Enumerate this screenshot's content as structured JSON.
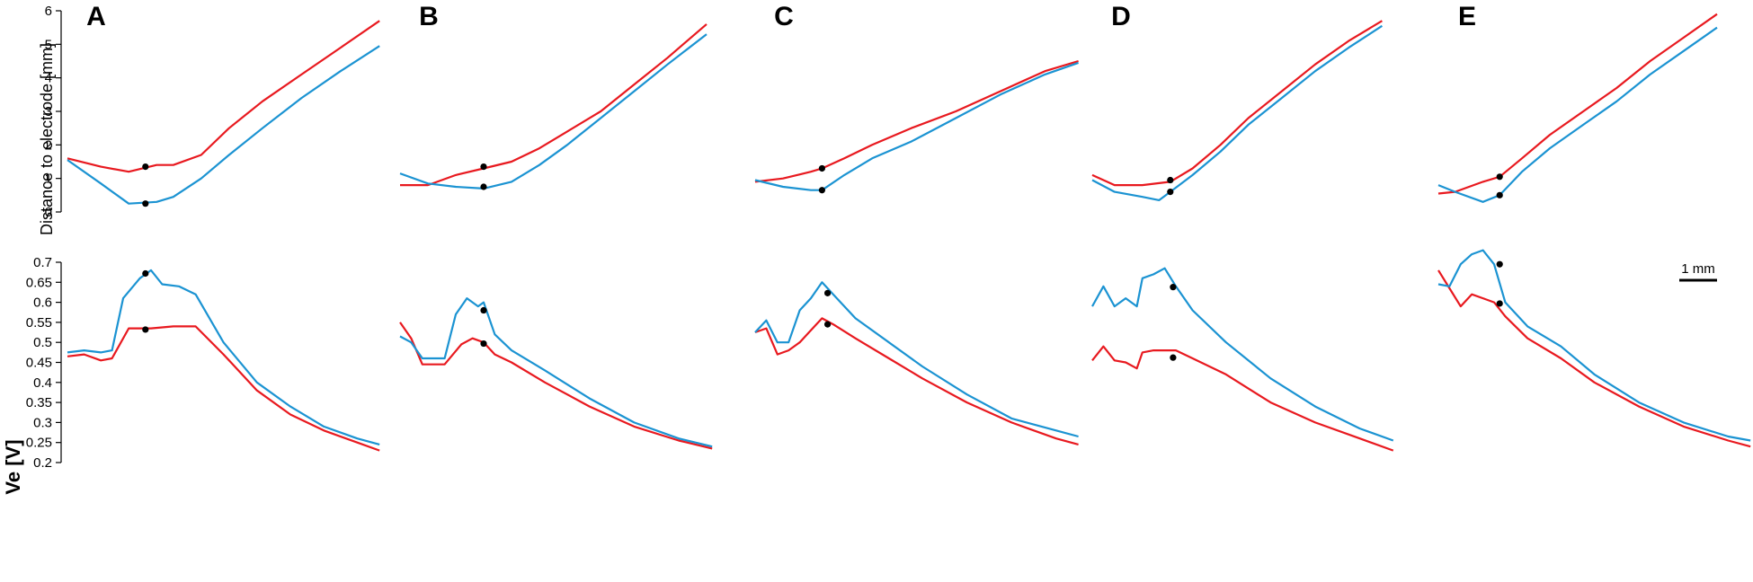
{
  "colors": {
    "red": "#e8191f",
    "blue": "#1b93d2",
    "marker": "#000000",
    "axis": "#000000"
  },
  "scale_bar_label": "1 mm",
  "chart_data": [
    {
      "type": "line",
      "subplot": "top",
      "ylabel": "Distance to electrode [mm]",
      "ylim": [
        0,
        6
      ],
      "yticks": [
        "0",
        "1",
        "2",
        "3",
        "4",
        "5",
        "6"
      ],
      "xlabel": "",
      "x_unit": "mm",
      "panels": [
        {
          "label": "A",
          "series": [
            {
              "color": "red",
              "x": [
                0,
                0.6,
                1.1,
                1.6,
                1.9,
                2.4,
                2.9,
                3.5,
                4.2,
                4.9,
                5.6
              ],
              "values": [
                1.6,
                1.35,
                1.2,
                1.4,
                1.4,
                1.7,
                2.5,
                3.3,
                4.1,
                4.9,
                5.7
              ]
            },
            {
              "color": "blue",
              "x": [
                0,
                0.6,
                1.1,
                1.6,
                1.9,
                2.4,
                2.9,
                3.5,
                4.2,
                4.9,
                5.6
              ],
              "values": [
                1.55,
                0.85,
                0.25,
                0.3,
                0.45,
                1.0,
                1.7,
                2.5,
                3.4,
                4.2,
                4.95
              ]
            }
          ],
          "markers": [
            {
              "x": 1.4,
              "y": 1.35
            },
            {
              "x": 1.4,
              "y": 0.25
            }
          ]
        },
        {
          "label": "B",
          "series": [
            {
              "color": "red",
              "x": [
                0,
                0.5,
                1.0,
                1.5,
                2.0,
                2.5,
                3.0,
                3.6,
                4.2,
                4.8,
                5.5
              ],
              "values": [
                0.8,
                0.8,
                1.1,
                1.3,
                1.5,
                1.9,
                2.4,
                3.0,
                3.8,
                4.6,
                5.6
              ]
            },
            {
              "color": "blue",
              "x": [
                0,
                0.5,
                1.0,
                1.5,
                2.0,
                2.5,
                3.0,
                3.6,
                4.2,
                4.8,
                5.5
              ],
              "values": [
                1.15,
                0.85,
                0.75,
                0.7,
                0.9,
                1.4,
                2.0,
                2.8,
                3.6,
                4.4,
                5.3
              ]
            }
          ],
          "markers": [
            {
              "x": 1.5,
              "y": 1.35
            },
            {
              "x": 1.5,
              "y": 0.75
            }
          ]
        },
        {
          "label": "C",
          "series": [
            {
              "color": "red",
              "x": [
                0,
                0.5,
                1.0,
                1.2,
                1.6,
                2.1,
                2.8,
                3.6,
                4.4,
                5.2,
                5.8
              ],
              "values": [
                0.9,
                1.0,
                1.2,
                1.3,
                1.6,
                2.0,
                2.5,
                3.0,
                3.6,
                4.2,
                4.5
              ]
            },
            {
              "color": "blue",
              "x": [
                0,
                0.5,
                1.0,
                1.2,
                1.6,
                2.1,
                2.8,
                3.6,
                4.4,
                5.2,
                5.8
              ],
              "values": [
                0.95,
                0.75,
                0.65,
                0.65,
                1.1,
                1.6,
                2.1,
                2.8,
                3.5,
                4.1,
                4.45
              ]
            }
          ],
          "markers": [
            {
              "x": 1.2,
              "y": 1.3
            },
            {
              "x": 1.2,
              "y": 0.65
            }
          ]
        },
        {
          "label": "D",
          "series": [
            {
              "color": "red",
              "x": [
                0,
                0.4,
                0.9,
                1.4,
                1.8,
                2.3,
                2.8,
                3.4,
                4.0,
                4.6,
                5.2
              ],
              "values": [
                1.1,
                0.8,
                0.8,
                0.9,
                1.3,
                2.0,
                2.8,
                3.6,
                4.4,
                5.1,
                5.7
              ]
            },
            {
              "color": "blue",
              "x": [
                0,
                0.4,
                0.9,
                1.2,
                1.4,
                1.8,
                2.3,
                2.8,
                3.4,
                4.0,
                4.6,
                5.2
              ],
              "values": [
                0.95,
                0.6,
                0.45,
                0.35,
                0.6,
                1.1,
                1.8,
                2.6,
                3.4,
                4.2,
                4.9,
                5.55
              ]
            }
          ],
          "markers": [
            {
              "x": 1.4,
              "y": 0.95
            },
            {
              "x": 1.4,
              "y": 0.6
            }
          ]
        },
        {
          "label": "E",
          "series": [
            {
              "color": "red",
              "x": [
                0,
                0.3,
                0.8,
                1.1,
                1.5,
                2.0,
                2.6,
                3.2,
                3.8,
                4.4,
                5.0
              ],
              "values": [
                0.55,
                0.6,
                0.9,
                1.05,
                1.6,
                2.3,
                3.0,
                3.7,
                4.5,
                5.2,
                5.9
              ]
            },
            {
              "color": "blue",
              "x": [
                0,
                0.3,
                0.8,
                1.1,
                1.5,
                2.0,
                2.6,
                3.2,
                3.8,
                4.4,
                5.0
              ],
              "values": [
                0.8,
                0.6,
                0.3,
                0.5,
                1.2,
                1.9,
                2.6,
                3.3,
                4.1,
                4.8,
                5.5
              ]
            }
          ],
          "markers": [
            {
              "x": 1.1,
              "y": 1.05
            },
            {
              "x": 1.1,
              "y": 0.5
            }
          ]
        }
      ]
    },
    {
      "type": "line",
      "subplot": "bottom",
      "ylabel": "Ve [V]",
      "ylim": [
        0.2,
        0.7
      ],
      "yticks": [
        "0.2",
        "0.25",
        "0.3",
        "0.35",
        "0.4",
        "0.45",
        "0.5",
        "0.55",
        "0.6",
        "0.65",
        "0.7"
      ],
      "xlabel": "",
      "x_unit": "mm",
      "panels": [
        {
          "label": "A",
          "series": [
            {
              "color": "red",
              "x": [
                0,
                0.3,
                0.6,
                0.8,
                1.1,
                1.5,
                1.9,
                2.3,
                2.8,
                3.4,
                4.0,
                4.6,
                5.2,
                5.6
              ],
              "values": [
                0.465,
                0.47,
                0.455,
                0.46,
                0.535,
                0.535,
                0.54,
                0.54,
                0.47,
                0.38,
                0.32,
                0.28,
                0.25,
                0.23
              ]
            },
            {
              "color": "blue",
              "x": [
                0,
                0.3,
                0.6,
                0.8,
                1.0,
                1.3,
                1.5,
                1.7,
                2.0,
                2.3,
                2.8,
                3.4,
                4.0,
                4.6,
                5.2,
                5.6
              ],
              "values": [
                0.475,
                0.48,
                0.475,
                0.48,
                0.61,
                0.66,
                0.68,
                0.645,
                0.64,
                0.62,
                0.5,
                0.4,
                0.34,
                0.29,
                0.26,
                0.245
              ]
            }
          ],
          "markers": [
            {
              "x": 1.4,
              "y": 0.672
            },
            {
              "x": 1.4,
              "y": 0.532
            }
          ]
        },
        {
          "label": "B",
          "series": [
            {
              "color": "red",
              "x": [
                0,
                0.2,
                0.4,
                0.8,
                1.1,
                1.3,
                1.5,
                1.7,
                2.0,
                2.6,
                3.4,
                4.2,
                5.0,
                5.6
              ],
              "values": [
                0.55,
                0.51,
                0.445,
                0.445,
                0.495,
                0.51,
                0.5,
                0.47,
                0.45,
                0.4,
                0.34,
                0.29,
                0.255,
                0.235
              ]
            },
            {
              "color": "blue",
              "x": [
                0,
                0.2,
                0.4,
                0.8,
                1.0,
                1.2,
                1.4,
                1.5,
                1.7,
                2.0,
                2.6,
                3.4,
                4.2,
                5.0,
                5.6
              ],
              "values": [
                0.515,
                0.5,
                0.46,
                0.46,
                0.57,
                0.61,
                0.59,
                0.6,
                0.52,
                0.48,
                0.43,
                0.36,
                0.3,
                0.26,
                0.24
              ]
            }
          ],
          "markers": [
            {
              "x": 1.5,
              "y": 0.58
            },
            {
              "x": 1.5,
              "y": 0.497
            }
          ]
        },
        {
          "label": "C",
          "series": [
            {
              "color": "red",
              "x": [
                0,
                0.2,
                0.4,
                0.6,
                0.8,
                1.0,
                1.2,
                1.4,
                1.8,
                2.4,
                3.0,
                3.8,
                4.6,
                5.4,
                5.8
              ],
              "values": [
                0.525,
                0.535,
                0.47,
                0.48,
                0.5,
                0.53,
                0.56,
                0.545,
                0.51,
                0.46,
                0.41,
                0.35,
                0.3,
                0.26,
                0.245
              ]
            },
            {
              "color": "blue",
              "x": [
                0,
                0.2,
                0.4,
                0.6,
                0.8,
                1.0,
                1.2,
                1.4,
                1.8,
                2.4,
                3.0,
                3.8,
                4.6,
                5.4,
                5.8
              ],
              "values": [
                0.525,
                0.555,
                0.5,
                0.5,
                0.58,
                0.61,
                0.65,
                0.62,
                0.56,
                0.5,
                0.44,
                0.37,
                0.31,
                0.28,
                0.265
              ]
            }
          ],
          "markers": [
            {
              "x": 1.3,
              "y": 0.623
            },
            {
              "x": 1.3,
              "y": 0.545
            }
          ]
        },
        {
          "label": "D",
          "series": [
            {
              "color": "red",
              "x": [
                0,
                0.2,
                0.4,
                0.6,
                0.8,
                0.9,
                1.1,
                1.5,
                1.8,
                2.4,
                3.2,
                4.0,
                4.8,
                5.4
              ],
              "values": [
                0.455,
                0.49,
                0.455,
                0.45,
                0.435,
                0.475,
                0.48,
                0.48,
                0.46,
                0.42,
                0.35,
                0.3,
                0.26,
                0.23
              ]
            },
            {
              "color": "blue",
              "x": [
                0,
                0.2,
                0.4,
                0.6,
                0.8,
                0.9,
                1.1,
                1.3,
                1.5,
                1.8,
                2.4,
                3.2,
                4.0,
                4.8,
                5.4
              ],
              "values": [
                0.59,
                0.64,
                0.59,
                0.61,
                0.59,
                0.66,
                0.67,
                0.685,
                0.64,
                0.58,
                0.5,
                0.41,
                0.34,
                0.285,
                0.255
              ]
            }
          ],
          "markers": [
            {
              "x": 1.45,
              "y": 0.638
            },
            {
              "x": 1.45,
              "y": 0.462
            }
          ]
        },
        {
          "label": "E",
          "series": [
            {
              "color": "red",
              "x": [
                0,
                0.2,
                0.4,
                0.6,
                0.8,
                1.0,
                1.2,
                1.6,
                2.2,
                2.8,
                3.6,
                4.4,
                5.2,
                5.6
              ],
              "values": [
                0.68,
                0.635,
                0.59,
                0.62,
                0.61,
                0.6,
                0.565,
                0.51,
                0.46,
                0.4,
                0.34,
                0.29,
                0.255,
                0.24
              ]
            },
            {
              "color": "blue",
              "x": [
                0,
                0.2,
                0.4,
                0.6,
                0.8,
                1.0,
                1.2,
                1.6,
                2.2,
                2.8,
                3.6,
                4.4,
                5.2,
                5.6
              ],
              "values": [
                0.645,
                0.64,
                0.695,
                0.72,
                0.73,
                0.695,
                0.6,
                0.54,
                0.49,
                0.42,
                0.35,
                0.3,
                0.265,
                0.255
              ]
            }
          ],
          "markers": [
            {
              "x": 1.1,
              "y": 0.695
            },
            {
              "x": 1.1,
              "y": 0.597
            }
          ]
        }
      ]
    }
  ]
}
